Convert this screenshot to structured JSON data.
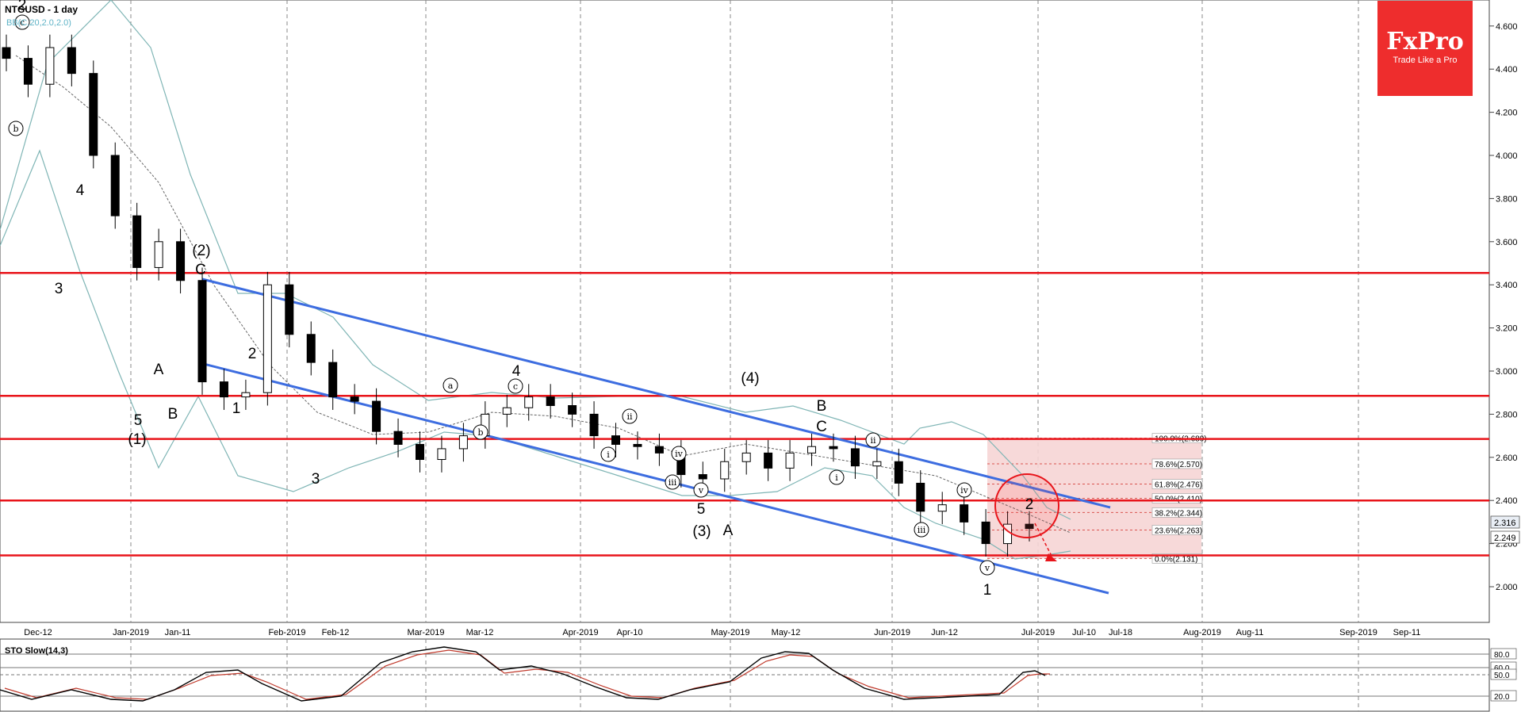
{
  "header": {
    "title": "NTGUSD - 1 day",
    "indicator": "BB(C,20,2.0,2.0)"
  },
  "logo": {
    "brand": "FxPro",
    "tagline": "Trade Like a Pro",
    "color": "#ee2d2d"
  },
  "stochastic": {
    "title": "STO Slow(14,3)",
    "levels": [
      "80.0",
      "60.0",
      "50.0",
      "20.0"
    ]
  },
  "colors": {
    "support_resistance": "#e8141a",
    "channel": "#3d6de0",
    "bollinger": "#7fb5b5",
    "fib_zone": "#f6d5d5",
    "up_candle": "#ffffff",
    "down_candle": "#000000",
    "stoch_k": "#000000",
    "stoch_d": "#c0392b"
  },
  "chart_data": {
    "type": "candlestick",
    "title": "NTGUSD - 1 day",
    "y_ticks": [
      "4.600",
      "4.400",
      "4.200",
      "4.000",
      "3.800",
      "3.600",
      "3.400",
      "3.200",
      "3.000",
      "2.800",
      "2.600",
      "2.400",
      "2.200",
      "2.000"
    ],
    "ylim": [
      1.85,
      4.7
    ],
    "x_ticks": [
      "Dec-12",
      "Jan-2019",
      "Jan-11",
      "Feb-2019",
      "Feb-12",
      "Mar-2019",
      "Mar-12",
      "Apr-2019",
      "Apr-10",
      "May-2019",
      "May-12",
      "Jun-2019",
      "Jun-12",
      "Jul-2019",
      "Jul-10",
      "Jul-18",
      "Aug-2019",
      "Aug-11",
      "Sep-2019",
      "Sep-11"
    ],
    "price_labels": [
      "2.316",
      "2.249"
    ],
    "horizontal_levels": [
      3.455,
      2.885,
      2.685,
      2.4,
      2.145
    ],
    "fibonacci": [
      {
        "label": "100.0%(2.689)",
        "value": 2.689
      },
      {
        "label": "78.6%(2.570)",
        "value": 2.57
      },
      {
        "label": "61.8%(2.476)",
        "value": 2.476
      },
      {
        "label": "50.0%(2.410)",
        "value": 2.41
      },
      {
        "label": "38.2%(2.344)",
        "value": 2.344
      },
      {
        "label": "23.6%(2.263)",
        "value": 2.263
      },
      {
        "label": "0.0%(2.131)",
        "value": 2.131
      }
    ],
    "wave_labels_big": [
      "2",
      "4",
      "3",
      "(2)",
      "C",
      "2",
      "A",
      "5",
      "B",
      "1",
      "(1)",
      "3",
      "4",
      "5",
      "(3)",
      "A",
      "B",
      "(4)",
      "C",
      "1",
      "2"
    ],
    "wave_labels_small": [
      "c",
      "b",
      "a",
      "b",
      "c",
      "i",
      "ii",
      "iii",
      "iv",
      "v",
      "i",
      "ii",
      "iii",
      "iv",
      "v"
    ],
    "series": [
      {
        "name": "price",
        "values": [
          4.45,
          4.33,
          4.5,
          4.38,
          4.0,
          3.72,
          3.48,
          3.6,
          3.42,
          2.95,
          2.88,
          2.9,
          3.4,
          3.17,
          3.04,
          2.88,
          2.86,
          2.72,
          2.66,
          2.59,
          2.64,
          2.7,
          2.8,
          2.83,
          2.88,
          2.84,
          2.8,
          2.7,
          2.66,
          2.65,
          2.62,
          2.52,
          2.5,
          2.58,
          2.62,
          2.55,
          2.62,
          2.65,
          2.64,
          2.56,
          2.58,
          2.48,
          2.35,
          2.38,
          2.3,
          2.2,
          2.29,
          2.27
        ]
      }
    ]
  }
}
